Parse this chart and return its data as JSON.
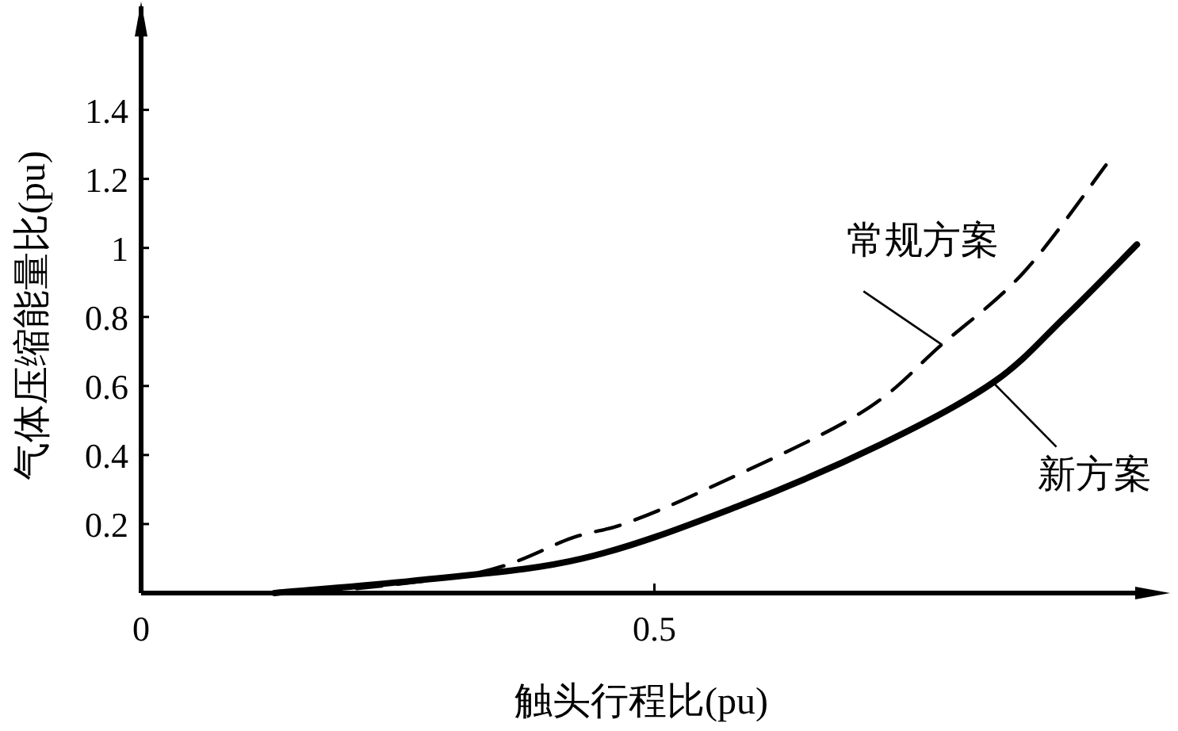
{
  "chart_data": {
    "type": "line",
    "xlabel": "触头行程比(pu)",
    "ylabel": "气体压缩能量比(pu)",
    "xlim": [
      0,
      0.99
    ],
    "ylim": [
      0,
      1.7
    ],
    "xticks": [
      0,
      0.5
    ],
    "yticks": [
      0.2,
      0.4,
      0.6,
      0.8,
      1.0,
      1.2,
      1.4
    ],
    "legend": "right",
    "grid": false,
    "series": [
      {
        "name": "常规方案",
        "color": "#000000",
        "line_style": "dashed",
        "x": [
          0.17,
          0.33,
          0.42,
          0.47,
          0.55,
          0.7,
          0.78,
          0.86,
          0.94
        ],
        "values": [
          0,
          0.06,
          0.16,
          0.2,
          0.3,
          0.52,
          0.72,
          0.93,
          1.24
        ]
      },
      {
        "name": "新方案",
        "color": "#000000",
        "line_style": "solid",
        "x": [
          0.13,
          0.28,
          0.43,
          0.58,
          0.72,
          0.83,
          0.9,
          0.97
        ],
        "values": [
          0,
          0.04,
          0.1,
          0.25,
          0.43,
          0.61,
          0.8,
          1.01
        ]
      }
    ]
  }
}
